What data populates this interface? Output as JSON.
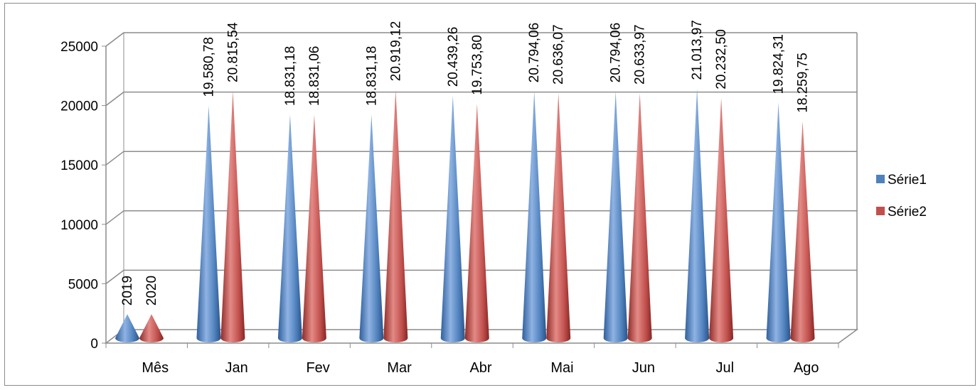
{
  "chart_data": {
    "type": "bar",
    "style": "3d-cone",
    "categories": [
      "Mês",
      "Jan",
      "Fev",
      "Mar",
      "Abr",
      "Mai",
      "Jun",
      "Jul",
      "Ago"
    ],
    "series": [
      {
        "name": "Série1",
        "color": "#4f81bd",
        "values": [
          2019,
          19580.78,
          18831.18,
          18831.18,
          20439.26,
          20794.06,
          20794.06,
          21013.97,
          19824.31
        ],
        "labels": [
          "2019",
          "19.580,78",
          "18.831,18",
          "18.831,18",
          "20.439,26",
          "20.794,06",
          "20.794,06",
          "21.013,97",
          "19.824,31"
        ]
      },
      {
        "name": "Série2",
        "color": "#c0504d",
        "values": [
          2020,
          20815.54,
          18831.06,
          20919.12,
          19753.8,
          20636.07,
          20633.97,
          20232.5,
          18259.75
        ],
        "labels": [
          "2020",
          "20.815,54",
          "18.831,06",
          "20.919,12",
          "19.753,80",
          "20.636,07",
          "20.633,97",
          "20.232,50",
          "18.259,75"
        ]
      }
    ],
    "yticks": [
      "0",
      "5000",
      "10000",
      "15000",
      "20000",
      "25000"
    ],
    "ylim": [
      0,
      25000
    ],
    "grid": true,
    "legend": "right",
    "title": "",
    "xlabel": "",
    "ylabel": ""
  }
}
